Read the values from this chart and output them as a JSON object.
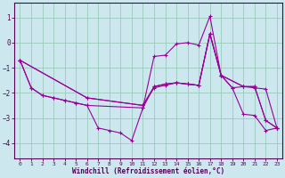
{
  "xlabel": "Windchill (Refroidissement éolien,°C)",
  "background_color": "#cce8ee",
  "grid_color": "#99ccbb",
  "line_color": "#990099",
  "xlim": [
    -0.5,
    23.5
  ],
  "ylim": [
    -4.6,
    1.6
  ],
  "yticks": [
    -4,
    -3,
    -2,
    -1,
    0,
    1
  ],
  "xticks": [
    0,
    1,
    2,
    3,
    4,
    5,
    6,
    7,
    8,
    9,
    10,
    11,
    12,
    13,
    14,
    15,
    16,
    17,
    18,
    19,
    20,
    21,
    22,
    23
  ],
  "lines": [
    {
      "x": [
        0,
        1,
        2,
        3,
        4,
        5,
        6,
        7,
        8,
        9,
        10,
        11,
        12,
        13,
        14,
        15,
        16,
        17,
        18,
        19,
        20,
        21,
        22,
        23
      ],
      "y": [
        -0.7,
        -1.8,
        -2.1,
        -2.2,
        -2.3,
        -2.4,
        -2.5,
        -3.4,
        -3.5,
        -3.6,
        -3.9,
        -2.6,
        -0.55,
        -0.5,
        -0.05,
        0.0,
        -0.1,
        1.05,
        -1.3,
        -1.8,
        -2.85,
        -2.9,
        -3.5,
        -3.4
      ]
    },
    {
      "x": [
        0,
        6,
        11,
        12,
        13,
        14,
        15,
        16,
        17,
        18,
        20,
        21,
        22,
        23
      ],
      "y": [
        -0.7,
        -2.2,
        -2.5,
        -1.75,
        -1.65,
        -1.6,
        -1.65,
        -1.7,
        0.35,
        -1.3,
        -1.75,
        -1.75,
        -3.1,
        -3.4
      ]
    },
    {
      "x": [
        0,
        6,
        11,
        12,
        13,
        14,
        15,
        16,
        17,
        18,
        20,
        21,
        22,
        23
      ],
      "y": [
        -0.7,
        -2.2,
        -2.5,
        -1.8,
        -1.7,
        -1.6,
        -1.65,
        -1.7,
        0.35,
        -1.3,
        -1.75,
        -1.8,
        -1.85,
        -3.4
      ]
    },
    {
      "x": [
        0,
        1,
        2,
        3,
        4,
        5,
        6,
        11,
        12,
        13,
        14,
        15,
        16,
        17,
        18,
        19,
        20,
        21,
        22,
        23
      ],
      "y": [
        -0.7,
        -1.8,
        -2.1,
        -2.2,
        -2.3,
        -2.4,
        -2.5,
        -2.6,
        -1.75,
        -1.65,
        -1.6,
        -1.65,
        -1.7,
        0.35,
        -1.3,
        -1.8,
        -1.75,
        -1.75,
        -3.1,
        -3.4
      ]
    }
  ]
}
